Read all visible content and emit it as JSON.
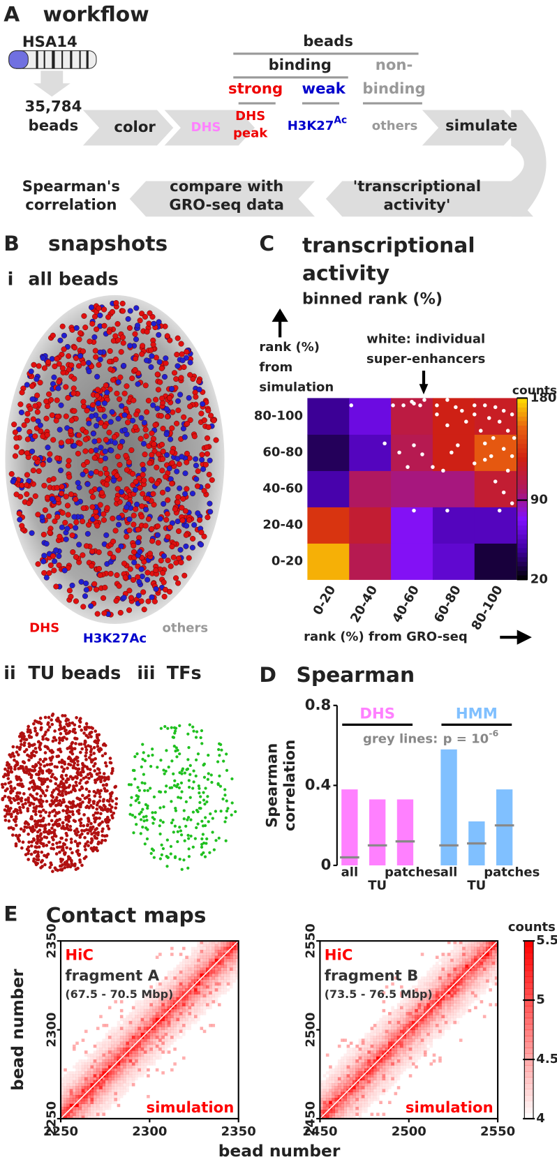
{
  "panel_a": {
    "letter": "A",
    "title": "workflow",
    "chromosome": "HSA14",
    "beads_count": "35,784",
    "beads": "beads",
    "color": "color",
    "dhs": "DHS",
    "beads_header": "beads",
    "binding": "binding",
    "non_binding_1": "non-",
    "non_binding_2": "binding",
    "strong": "strong",
    "weak": "weak",
    "dhs_peak_1": "DHS",
    "dhs_peak_2": "peak",
    "h3k27ac": "H3K27",
    "h3k27ac_sup": "Ac",
    "others": "others",
    "simulate": "simulate",
    "activity_1": "'transcriptional",
    "activity_2": "activity'",
    "compare_1": "compare with",
    "compare_2": "GRO-seq data",
    "spearman_1": "Spearman's",
    "spearman_2": "correlation"
  },
  "panel_b": {
    "letter": "B",
    "title": "snapshots",
    "sub_i_num": "i",
    "sub_i": "all beads",
    "legend_dhs": "DHS",
    "legend_h3k27ac": "H3K27Ac",
    "legend_others": "others",
    "sub_ii_num": "ii",
    "sub_ii": "TU beads",
    "sub_iii_num": "iii",
    "sub_iii": "TFs"
  },
  "panel_e": {
    "letter": "E",
    "title": "Contact maps",
    "x_label": "bead number",
    "y_label": "bead number"
  },
  "chart_data": [
    {
      "type": "heatmap",
      "panel": "C",
      "title_lines": [
        "transcriptional",
        "activity"
      ],
      "subtitle": "binned rank (%)",
      "y_label_lines": [
        "rank (%)",
        "from",
        "simulation"
      ],
      "annotation_lines": [
        "white: individual",
        "super-enhancers"
      ],
      "x_label": "rank (%) from GRO-seq",
      "x_categories": [
        "0-20",
        "20-40",
        "40-60",
        "60-80",
        "80-100"
      ],
      "y_categories": [
        "0-20",
        "20-40",
        "40-60",
        "60-80",
        "80-100"
      ],
      "values": [
        [
          170,
          105,
          75,
          60,
          30
        ],
        [
          135,
          115,
          75,
          55,
          55
        ],
        [
          50,
          100,
          95,
          95,
          115
        ],
        [
          35,
          55,
          105,
          125,
          150
        ],
        [
          45,
          65,
          110,
          125,
          120
        ]
      ],
      "colormap": [
        "#000000",
        "#4000a0",
        "#8010ff",
        "#b01860",
        "#d02010",
        "#e86010",
        "#ffe000"
      ],
      "colorbar_label": "counts",
      "colorbar_lim": [
        20,
        180
      ],
      "colorbar_ticks": [
        20,
        90,
        180
      ],
      "points": {
        "color": "#ffffff",
        "x": [
          21,
          37,
          41,
          46,
          50,
          54,
          56,
          62,
          67,
          71,
          74,
          80,
          85,
          90,
          94,
          98,
          87,
          92,
          96,
          83,
          99,
          89,
          85,
          94,
          98,
          88,
          80,
          69,
          65,
          60,
          51,
          44,
          48,
          55,
          62,
          67,
          76,
          72,
          96,
          94,
          98,
          90,
          51,
          67,
          92,
          51,
          80,
          85
        ],
        "y": [
          96,
          75,
          96,
          96,
          98,
          96,
          99,
          96,
          99,
          95,
          93,
          96,
          96,
          95,
          93,
          91,
          89,
          87,
          82,
          82,
          78,
          78,
          75,
          72,
          68,
          68,
          64,
          70,
          60,
          62,
          74,
          70,
          62,
          69,
          91,
          85,
          87,
          74,
          60,
          48,
          42,
          54,
          38,
          38,
          38,
          97,
          91,
          66
        ]
      }
    },
    {
      "type": "bar",
      "panel": "D",
      "title": "Spearman",
      "y_label_lines": [
        "Spearman",
        "correlation"
      ],
      "categories": [
        "all",
        "TU",
        "patches"
      ],
      "series": [
        {
          "name": "DHS",
          "color": "#ff80ff",
          "values": [
            0.38,
            0.33,
            0.33
          ],
          "thresholds": [
            0.04,
            0.1,
            0.12
          ]
        },
        {
          "name": "HMM",
          "color": "#80c0ff",
          "values": [
            0.58,
            0.22,
            0.38
          ],
          "thresholds": [
            0.1,
            0.11,
            0.2
          ]
        }
      ],
      "threshold_color": "#888888",
      "annotation": "grey lines:",
      "annotation_p": "p = 10",
      "annotation_p_sup": "-6",
      "ylim": [
        0,
        0.8
      ],
      "yticks": [
        0,
        0.4,
        0.8
      ]
    },
    {
      "type": "contact_map",
      "label": "HiC",
      "fragment": "fragment A",
      "range": "(67.5 - 70.5 Mbp)",
      "corner": "simulation",
      "color": "#ff0000",
      "xlim": [
        2250,
        2350
      ],
      "xticks": [
        2250,
        2300,
        2350
      ],
      "ylim": [
        2250,
        2350
      ],
      "yticks": [
        2250,
        2300,
        2350
      ]
    },
    {
      "type": "contact_map",
      "label": "HiC",
      "fragment": "fragment B",
      "range": "(73.5 - 76.5 Mbp)",
      "corner": "simulation",
      "color": "#ff0000",
      "xlim": [
        2450,
        2550
      ],
      "xticks": [
        2450,
        2500,
        2550
      ],
      "ylim": [
        2450,
        2550
      ],
      "yticks": [
        2450,
        2500,
        2550
      ],
      "colorbar_label": "counts",
      "colorbar_lim": [
        4,
        5.5
      ],
      "colorbar_ticks": [
        4,
        4.5,
        5,
        5.5
      ]
    }
  ]
}
